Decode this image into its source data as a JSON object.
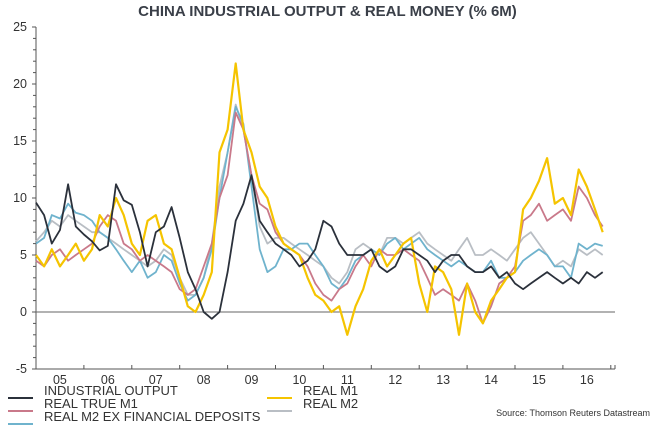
{
  "chart_data": {
    "type": "line",
    "title": "CHINA INDUSTRIAL OUTPUT & REAL MONEY (% 6M)",
    "xlabel": "",
    "ylabel": "",
    "ylim": [
      -5,
      25
    ],
    "xlim": [
      2005,
      2017.1
    ],
    "yticks": [
      "25",
      "20",
      "15",
      "10",
      "5",
      "0",
      "-5"
    ],
    "ytick_values": [
      25,
      20,
      15,
      10,
      5,
      0,
      -5
    ],
    "xticks": [
      "05",
      "06",
      "07",
      "08",
      "09",
      "10",
      "11",
      "12",
      "13",
      "14",
      "15",
      "16"
    ],
    "source": "Source: Thomson Reuters Datastream",
    "legend_position": "bottom",
    "x": [
      2005.0,
      2005.17,
      2005.33,
      2005.5,
      2005.67,
      2005.83,
      2006.0,
      2006.17,
      2006.33,
      2006.5,
      2006.67,
      2006.83,
      2007.0,
      2007.17,
      2007.33,
      2007.5,
      2007.67,
      2007.83,
      2008.0,
      2008.17,
      2008.33,
      2008.5,
      2008.67,
      2008.83,
      2009.0,
      2009.17,
      2009.33,
      2009.5,
      2009.67,
      2009.83,
      2010.0,
      2010.17,
      2010.33,
      2010.5,
      2010.67,
      2010.83,
      2011.0,
      2011.17,
      2011.33,
      2011.5,
      2011.67,
      2011.83,
      2012.0,
      2012.17,
      2012.33,
      2012.5,
      2012.67,
      2012.83,
      2013.0,
      2013.17,
      2013.33,
      2013.5,
      2013.67,
      2013.83,
      2014.0,
      2014.17,
      2014.33,
      2014.5,
      2014.67,
      2014.83,
      2015.0,
      2015.17,
      2015.33,
      2015.5,
      2015.67,
      2015.83,
      2016.0,
      2016.17,
      2016.33,
      2016.5,
      2016.67,
      2016.83
    ],
    "series": [
      {
        "name": "INDUSTRIAL OUTPUT",
        "color": "#2b313b",
        "values": [
          9.6,
          8.5,
          6.0,
          7.2,
          11.2,
          7.5,
          6.8,
          6.2,
          5.4,
          5.8,
          11.2,
          9.8,
          9.4,
          7.0,
          4.0,
          7.0,
          7.5,
          9.2,
          6.5,
          3.5,
          2.0,
          0.0,
          -0.6,
          0.0,
          3.5,
          8.0,
          9.5,
          12.0,
          8.0,
          7.0,
          6.0,
          5.5,
          5.0,
          4.0,
          4.5,
          5.5,
          8.0,
          7.5,
          6.0,
          5.0,
          5.0,
          5.0,
          5.5,
          4.0,
          3.5,
          4.0,
          5.5,
          5.5,
          5.0,
          4.5,
          3.5,
          4.5,
          5.0,
          5.0,
          4.0,
          3.5,
          3.5,
          4.0,
          3.0,
          3.5,
          2.5,
          2.0,
          2.5,
          3.0,
          3.5,
          3.0,
          2.5,
          3.0,
          2.5,
          3.5,
          3.0,
          3.5
        ]
      },
      {
        "name": "REAL TRUE M1",
        "color": "#c9798a",
        "values": [
          4.5,
          4.0,
          5.0,
          5.5,
          4.5,
          5.0,
          5.5,
          6.0,
          7.5,
          8.5,
          8.0,
          6.0,
          5.5,
          4.5,
          5.0,
          4.5,
          4.0,
          3.5,
          2.0,
          1.5,
          2.0,
          4.0,
          6.0,
          10.0,
          12.0,
          17.5,
          16.0,
          12.0,
          9.5,
          9.0,
          7.0,
          6.0,
          5.5,
          5.0,
          4.0,
          2.5,
          1.5,
          1.0,
          2.0,
          2.5,
          4.0,
          5.0,
          4.0,
          5.5,
          5.0,
          5.0,
          5.5,
          5.0,
          4.5,
          3.0,
          1.5,
          2.0,
          1.5,
          1.0,
          2.5,
          1.0,
          -1.0,
          0.5,
          2.5,
          3.0,
          4.0,
          8.0,
          8.5,
          9.5,
          8.0,
          8.5,
          9.0,
          8.0,
          11.0,
          10.0,
          8.5,
          7.5
        ]
      },
      {
        "name": "REAL M2 EX FINANCIAL DEPOSITS",
        "color": "#6fb3cd",
        "values": [
          6.0,
          6.5,
          8.5,
          8.2,
          9.5,
          8.7,
          8.5,
          8.0,
          7.0,
          6.5,
          5.5,
          4.5,
          3.5,
          4.5,
          3.0,
          3.5,
          5.0,
          4.5,
          2.5,
          1.0,
          1.5,
          3.0,
          5.5,
          10.0,
          14.0,
          18.0,
          16.5,
          11.0,
          5.5,
          3.5,
          4.0,
          5.5,
          5.5,
          6.0,
          6.0,
          5.0,
          4.0,
          2.5,
          2.0,
          3.0,
          4.5,
          5.0,
          5.5,
          5.0,
          6.0,
          6.5,
          5.5,
          6.0,
          6.5,
          5.5,
          5.0,
          4.5,
          4.0,
          4.5,
          4.0,
          3.5,
          3.5,
          4.5,
          3.0,
          3.0,
          3.5,
          4.5,
          5.0,
          5.5,
          5.0,
          4.0,
          4.0,
          3.0,
          6.0,
          5.5,
          6.0,
          5.8
        ]
      },
      {
        "name": "REAL M1",
        "color": "#f5c400",
        "values": [
          5.0,
          4.0,
          5.5,
          4.0,
          5.0,
          6.0,
          4.5,
          5.5,
          8.5,
          7.5,
          10.0,
          8.5,
          6.0,
          5.0,
          8.0,
          8.5,
          6.0,
          5.5,
          3.0,
          0.5,
          0.0,
          1.5,
          3.5,
          14.0,
          16.0,
          21.8,
          16.0,
          14.0,
          11.0,
          10.0,
          7.5,
          6.0,
          5.5,
          5.0,
          3.0,
          1.5,
          1.0,
          0.0,
          0.5,
          -2.0,
          0.5,
          2.0,
          4.5,
          5.5,
          4.0,
          5.0,
          6.0,
          6.5,
          2.5,
          0.0,
          4.0,
          3.5,
          2.0,
          -2.0,
          2.5,
          0.0,
          -1.0,
          1.0,
          2.0,
          3.0,
          3.5,
          9.0,
          10.0,
          11.5,
          13.5,
          9.5,
          10.0,
          8.5,
          12.5,
          11.0,
          9.0,
          7.0
        ]
      },
      {
        "name": "REAL M2",
        "color": "#b9bec4",
        "values": [
          6.2,
          7.0,
          8.0,
          7.5,
          8.5,
          8.0,
          7.5,
          7.0,
          7.0,
          6.5,
          6.0,
          5.5,
          5.0,
          4.5,
          4.0,
          4.5,
          5.5,
          5.0,
          3.0,
          1.5,
          1.5,
          3.0,
          6.0,
          11.0,
          14.0,
          18.2,
          16.0,
          12.0,
          7.5,
          6.0,
          6.5,
          6.5,
          6.0,
          5.5,
          5.0,
          4.5,
          4.0,
          3.0,
          2.5,
          3.5,
          5.5,
          6.0,
          5.5,
          5.0,
          6.5,
          6.5,
          6.0,
          6.5,
          7.0,
          6.0,
          5.5,
          5.0,
          4.5,
          5.5,
          6.5,
          5.0,
          5.0,
          5.5,
          5.0,
          4.5,
          5.5,
          6.5,
          7.0,
          6.0,
          5.0,
          4.0,
          4.5,
          4.0,
          5.5,
          5.0,
          5.5,
          5.0
        ]
      }
    ]
  }
}
